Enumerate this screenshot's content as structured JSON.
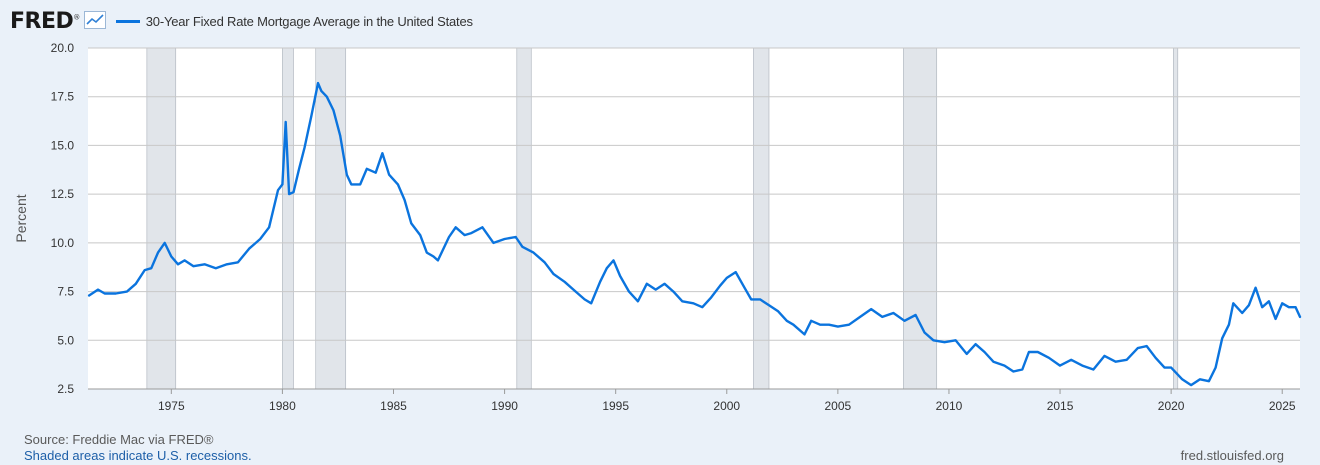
{
  "header": {
    "logo_text": "FRED",
    "logo_mark": "®",
    "logo_icon": "line-graph-icon",
    "series_title": "30-Year Fixed Rate Mortgage Average in the United States"
  },
  "footer": {
    "source": "Source: Freddie Mac via FRED®",
    "note": "Shaded areas indicate U.S. recessions.",
    "url": "fred.stlouisfed.org"
  },
  "colors": {
    "line": "#0b74de",
    "background": "#eaf1f9",
    "plot_background": "#ffffff",
    "recession": "#e1e5ea",
    "grid": "#c8c8c8",
    "text": "#333333"
  },
  "chart_data": {
    "type": "line",
    "title": "30-Year Fixed Rate Mortgage Average in the United States",
    "xlabel": "",
    "ylabel": "Percent",
    "xlim": [
      1971.25,
      2025.8
    ],
    "ylim": [
      2.5,
      20.0
    ],
    "x_ticks": [
      1975,
      1980,
      1985,
      1990,
      1995,
      2000,
      2005,
      2010,
      2015,
      2020,
      2025
    ],
    "x_tick_labels": [
      "1975",
      "1980",
      "1985",
      "1990",
      "1995",
      "2000",
      "2005",
      "2010",
      "2015",
      "2020",
      "2025"
    ],
    "y_ticks": [
      2.5,
      5.0,
      7.5,
      10.0,
      12.5,
      15.0,
      17.5,
      20.0
    ],
    "y_tick_labels": [
      "2.5",
      "5.0",
      "7.5",
      "10.0",
      "12.5",
      "15.0",
      "17.5",
      "20.0"
    ],
    "grid": "horizontal",
    "recessions": [
      [
        1973.9,
        1975.2
      ],
      [
        1980.0,
        1980.5
      ],
      [
        1981.5,
        1982.85
      ],
      [
        1990.55,
        1991.2
      ],
      [
        2001.2,
        2001.9
      ],
      [
        2007.95,
        2009.45
      ],
      [
        2020.1,
        2020.3
      ]
    ],
    "series": [
      {
        "x": [
          1971.3,
          1971.7,
          1972.0,
          1972.5,
          1973.0,
          1973.4,
          1973.8,
          1974.1,
          1974.4,
          1974.7,
          1975.0,
          1975.3,
          1975.6,
          1976.0,
          1976.5,
          1977.0,
          1977.5,
          1978.0,
          1978.5,
          1979.0,
          1979.4,
          1979.8,
          1980.0,
          1980.15,
          1980.3,
          1980.5,
          1980.75,
          1981.0,
          1981.3,
          1981.6,
          1981.75,
          1982.0,
          1982.3,
          1982.6,
          1982.9,
          1983.1,
          1983.5,
          1983.8,
          1984.2,
          1984.5,
          1984.8,
          1985.2,
          1985.5,
          1985.8,
          1986.2,
          1986.5,
          1986.8,
          1987.0,
          1987.5,
          1987.8,
          1988.2,
          1988.5,
          1989.0,
          1989.5,
          1990.0,
          1990.5,
          1990.8,
          1991.3,
          1991.8,
          1992.2,
          1992.7,
          1993.2,
          1993.6,
          1993.9,
          1994.3,
          1994.6,
          1994.9,
          1995.2,
          1995.6,
          1996.0,
          1996.4,
          1996.8,
          1997.2,
          1997.6,
          1998.0,
          1998.5,
          1998.9,
          1999.3,
          1999.7,
          2000.0,
          2000.4,
          2000.8,
          2001.1,
          2001.5,
          2001.9,
          2002.3,
          2002.7,
          2003.0,
          2003.5,
          2003.8,
          2004.2,
          2004.6,
          2005.0,
          2005.5,
          2006.0,
          2006.5,
          2007.0,
          2007.5,
          2008.0,
          2008.5,
          2008.9,
          2009.3,
          2009.8,
          2010.3,
          2010.8,
          2011.2,
          2011.6,
          2012.0,
          2012.5,
          2012.9,
          2013.3,
          2013.6,
          2014.0,
          2014.5,
          2015.0,
          2015.5,
          2016.0,
          2016.5,
          2017.0,
          2017.5,
          2018.0,
          2018.5,
          2018.9,
          2019.3,
          2019.7,
          2020.0,
          2020.5,
          2020.9,
          2021.3,
          2021.7,
          2022.0,
          2022.3,
          2022.6,
          2022.8,
          2023.2,
          2023.5,
          2023.8,
          2024.1,
          2024.4,
          2024.7,
          2025.0,
          2025.3,
          2025.6,
          2025.8
        ],
        "values": [
          7.3,
          7.6,
          7.4,
          7.4,
          7.5,
          7.9,
          8.6,
          8.7,
          9.5,
          10.0,
          9.3,
          8.9,
          9.1,
          8.8,
          8.9,
          8.7,
          8.9,
          9.0,
          9.7,
          10.2,
          10.8,
          12.7,
          13.0,
          16.2,
          12.5,
          12.6,
          13.8,
          14.9,
          16.5,
          18.2,
          17.8,
          17.5,
          16.8,
          15.5,
          13.5,
          13.0,
          13.0,
          13.8,
          13.6,
          14.6,
          13.5,
          13.0,
          12.2,
          11.0,
          10.4,
          9.5,
          9.3,
          9.1,
          10.3,
          10.8,
          10.4,
          10.5,
          10.8,
          10.0,
          10.2,
          10.3,
          9.8,
          9.5,
          9.0,
          8.4,
          8.0,
          7.5,
          7.1,
          6.9,
          8.0,
          8.7,
          9.1,
          8.3,
          7.5,
          7.0,
          7.9,
          7.6,
          7.9,
          7.5,
          7.0,
          6.9,
          6.7,
          7.2,
          7.8,
          8.2,
          8.5,
          7.7,
          7.1,
          7.1,
          6.8,
          6.5,
          6.0,
          5.8,
          5.3,
          6.0,
          5.8,
          5.8,
          5.7,
          5.8,
          6.2,
          6.6,
          6.2,
          6.4,
          6.0,
          6.3,
          5.4,
          5.0,
          4.9,
          5.0,
          4.3,
          4.8,
          4.4,
          3.9,
          3.7,
          3.4,
          3.5,
          4.4,
          4.4,
          4.1,
          3.7,
          4.0,
          3.7,
          3.5,
          4.2,
          3.9,
          4.0,
          4.6,
          4.7,
          4.1,
          3.6,
          3.6,
          3.0,
          2.7,
          3.0,
          2.9,
          3.6,
          5.1,
          5.8,
          6.9,
          6.4,
          6.8,
          7.7,
          6.7,
          7.0,
          6.1,
          6.9,
          6.7,
          6.7,
          6.2
        ]
      }
    ]
  }
}
